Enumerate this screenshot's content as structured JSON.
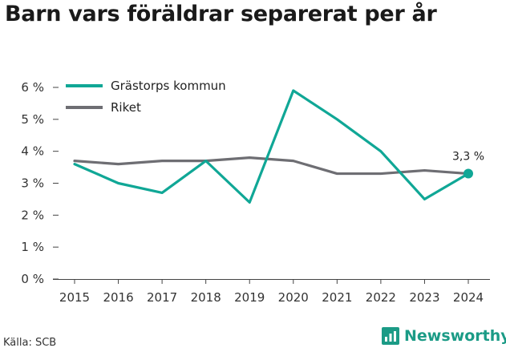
{
  "title": "Barn vars föräldrar separerat per år",
  "source": "Källa: SCB",
  "brand": "Newsworthy",
  "chart_data": {
    "type": "line",
    "title": "Barn vars föräldrar separerat per år",
    "x": [
      2015,
      2016,
      2017,
      2018,
      2019,
      2020,
      2021,
      2022,
      2023,
      2024
    ],
    "ylim": [
      0,
      6
    ],
    "yticks": [
      0,
      1,
      2,
      3,
      4,
      5,
      6
    ],
    "ytick_labels": [
      "0 %",
      "1 %",
      "2 %",
      "3 %",
      "4 %",
      "5 %",
      "6 %"
    ],
    "grid": false,
    "legend_position": "top-left",
    "series": [
      {
        "name": "Grästorps kommun",
        "color": "#10a796",
        "values": [
          3.6,
          3.0,
          2.7,
          3.7,
          2.4,
          5.9,
          5.0,
          4.0,
          2.5,
          3.3
        ]
      },
      {
        "name": "Riket",
        "color": "#6e6e73",
        "values": [
          3.7,
          3.6,
          3.7,
          3.7,
          3.8,
          3.7,
          3.3,
          3.3,
          3.4,
          3.3
        ]
      }
    ],
    "end_label": "3,3 %"
  }
}
